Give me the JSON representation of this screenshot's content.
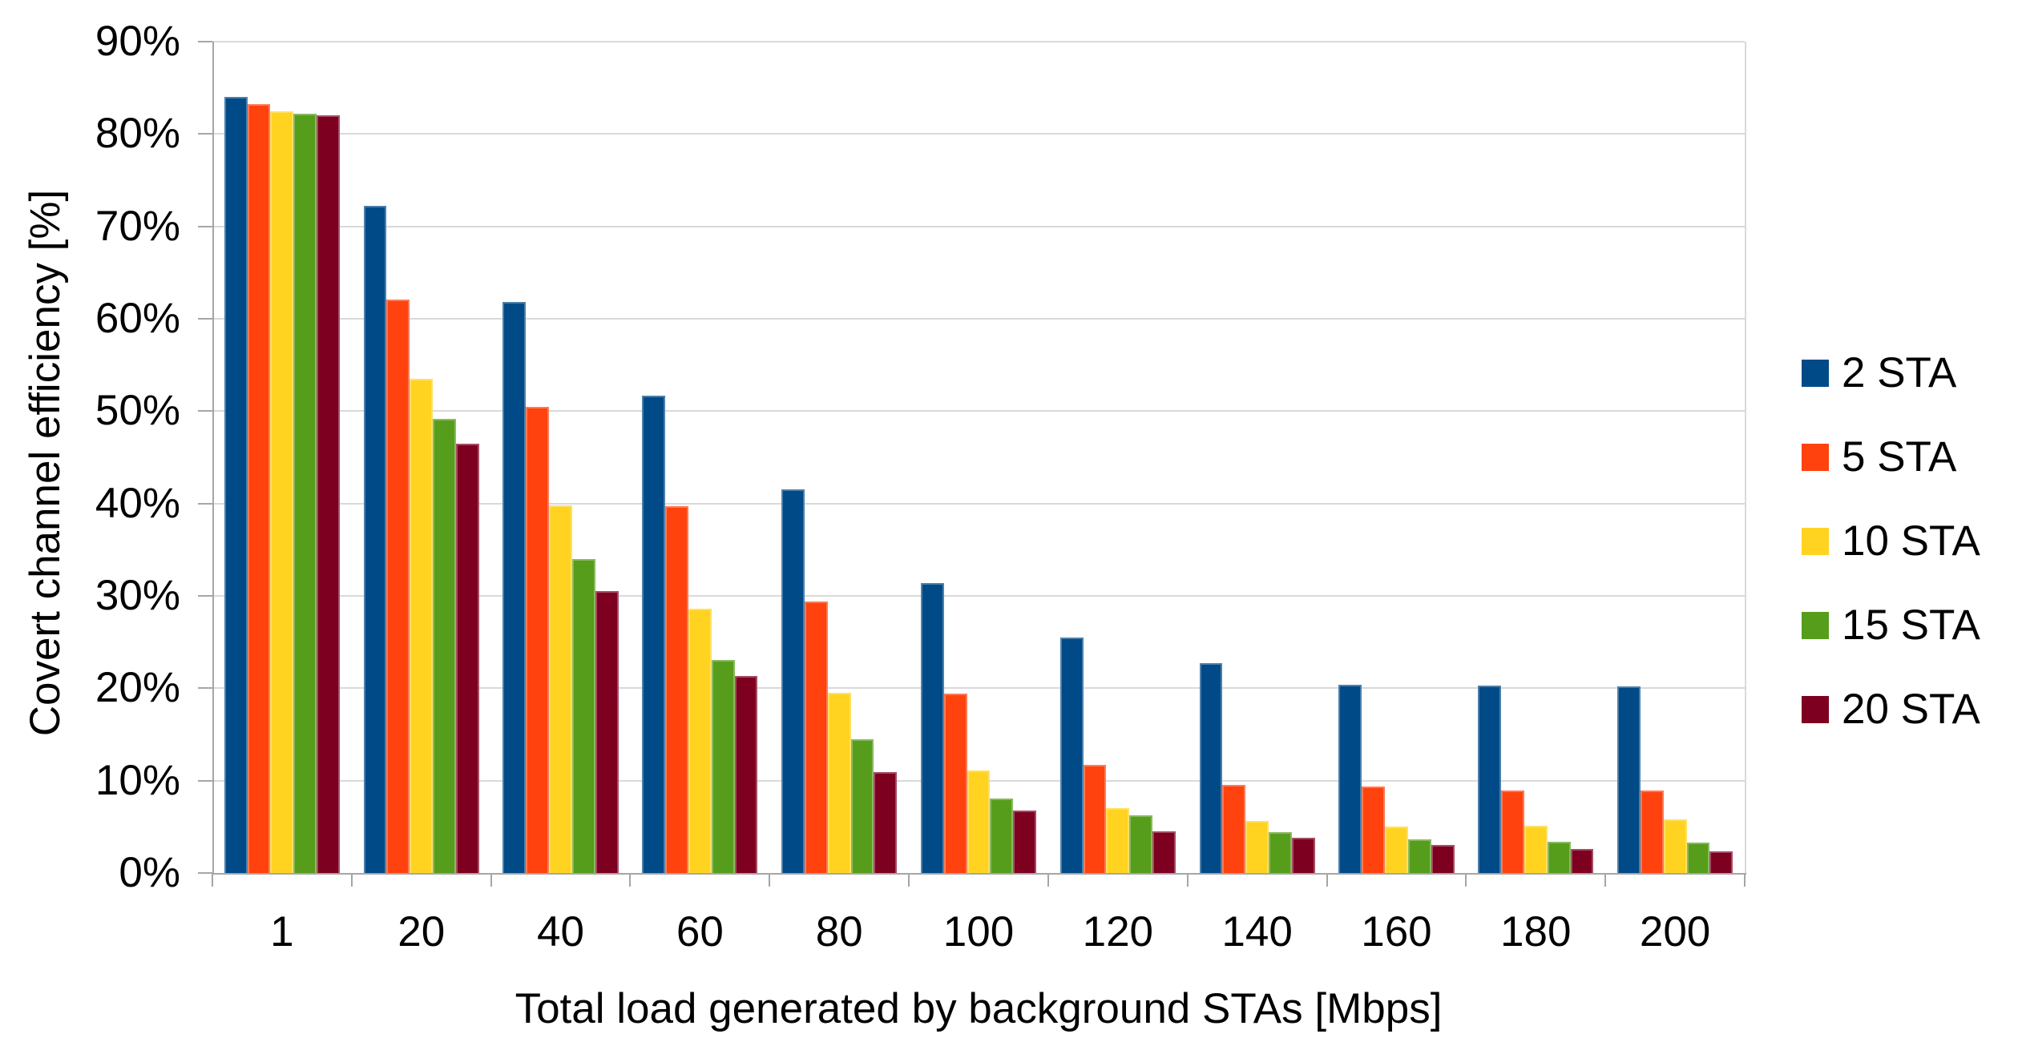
{
  "chart_data": {
    "type": "bar",
    "title": "",
    "xlabel": "Total load generated by background STAs [Mbps]",
    "ylabel": "Covert channel efficiency [%]",
    "categories": [
      "1",
      "20",
      "40",
      "60",
      "80",
      "100",
      "120",
      "140",
      "160",
      "180",
      "200"
    ],
    "series": [
      {
        "name": "2 STA",
        "color": "#004A87",
        "values": [
          84.0,
          72.2,
          61.8,
          51.7,
          41.5,
          31.4,
          25.5,
          22.7,
          20.4,
          20.3,
          20.2
        ]
      },
      {
        "name": "5 STA",
        "color": "#FF420E",
        "values": [
          83.2,
          62.1,
          50.5,
          39.7,
          29.4,
          19.4,
          11.7,
          9.5,
          9.4,
          8.9,
          8.9
        ]
      },
      {
        "name": "10 STA",
        "color": "#FFD320",
        "values": [
          82.5,
          53.5,
          39.8,
          28.6,
          19.5,
          11.1,
          7.0,
          5.6,
          5.0,
          5.1,
          5.8
        ]
      },
      {
        "name": "15 STA",
        "color": "#579D1C",
        "values": [
          82.2,
          49.2,
          34.0,
          23.1,
          14.5,
          8.1,
          6.2,
          4.4,
          3.6,
          3.4,
          3.3
        ]
      },
      {
        "name": "20 STA",
        "color": "#7E0021",
        "values": [
          82.0,
          46.5,
          30.5,
          21.3,
          10.9,
          6.8,
          4.5,
          3.8,
          3.0,
          2.6,
          2.3
        ]
      }
    ],
    "y_tick_labels": [
      "0%",
      "10%",
      "20%",
      "30%",
      "40%",
      "50%",
      "60%",
      "70%",
      "80%",
      "90%"
    ],
    "ylim": [
      0,
      90
    ],
    "y_step": 10,
    "grid": true,
    "legend_position": "right",
    "colors": {
      "gridline": "#d9d9d9",
      "axis": "#a6a6a6",
      "text": "#000000",
      "background": "#ffffff"
    }
  }
}
